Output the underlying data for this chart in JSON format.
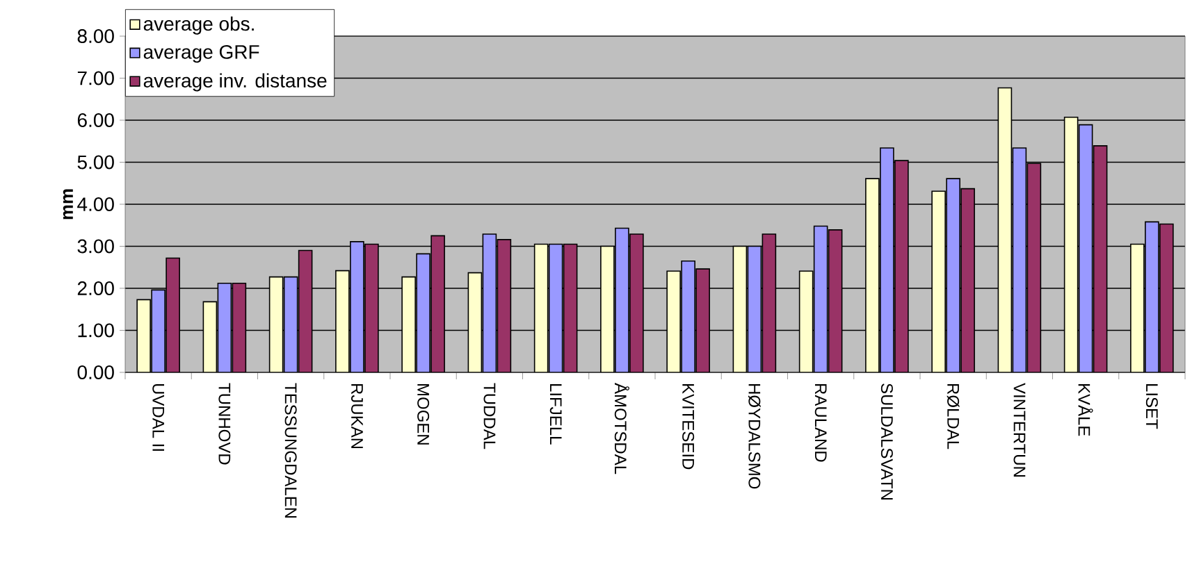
{
  "chart_data": {
    "type": "bar",
    "ylabel": "mm",
    "categories": [
      "UVDAL II",
      "TUNHOVD",
      "TESSUNGDALEN",
      "RJUKAN",
      "MOGEN",
      "TUDDAL",
      "LIFJELL",
      "ÅMOTSDAL",
      "KVITESEID",
      "HØYDALSMO",
      "RAULAND",
      "SULDALSVATN",
      "RØLDAL",
      "VINTERTUN",
      "KVÅLE",
      "LISET"
    ],
    "series": [
      {
        "name": "average obs.",
        "color": "#ffffcc",
        "values": [
          1.73,
          1.68,
          2.27,
          2.42,
          2.27,
          2.37,
          3.05,
          3.0,
          2.41,
          3.0,
          2.41,
          4.61,
          4.31,
          6.77,
          6.07,
          3.05
        ]
      },
      {
        "name": "average GRF",
        "color": "#9999ff",
        "values": [
          1.96,
          2.12,
          2.27,
          3.11,
          2.82,
          3.29,
          3.05,
          3.43,
          2.65,
          3.0,
          3.48,
          5.34,
          4.61,
          5.34,
          5.89,
          3.58
        ]
      },
      {
        "name": "average inv. distanse",
        "color": "#993366",
        "values": [
          2.72,
          2.12,
          2.9,
          3.05,
          3.25,
          3.16,
          3.05,
          3.29,
          2.46,
          3.29,
          3.39,
          5.04,
          4.37,
          4.97,
          5.39,
          3.53
        ]
      }
    ],
    "ylim": [
      0,
      8
    ],
    "yticks": [
      {
        "value": 0,
        "label": "0.00"
      },
      {
        "value": 1,
        "label": "1.00"
      },
      {
        "value": 2,
        "label": "2.00"
      },
      {
        "value": 3,
        "label": "3.00"
      },
      {
        "value": 4,
        "label": "4.00"
      },
      {
        "value": 5,
        "label": "5.00"
      },
      {
        "value": 6,
        "label": "6.00"
      },
      {
        "value": 7,
        "label": "7.00"
      },
      {
        "value": 8,
        "label": "8.00"
      }
    ],
    "grid": "y",
    "legend": "top left"
  }
}
